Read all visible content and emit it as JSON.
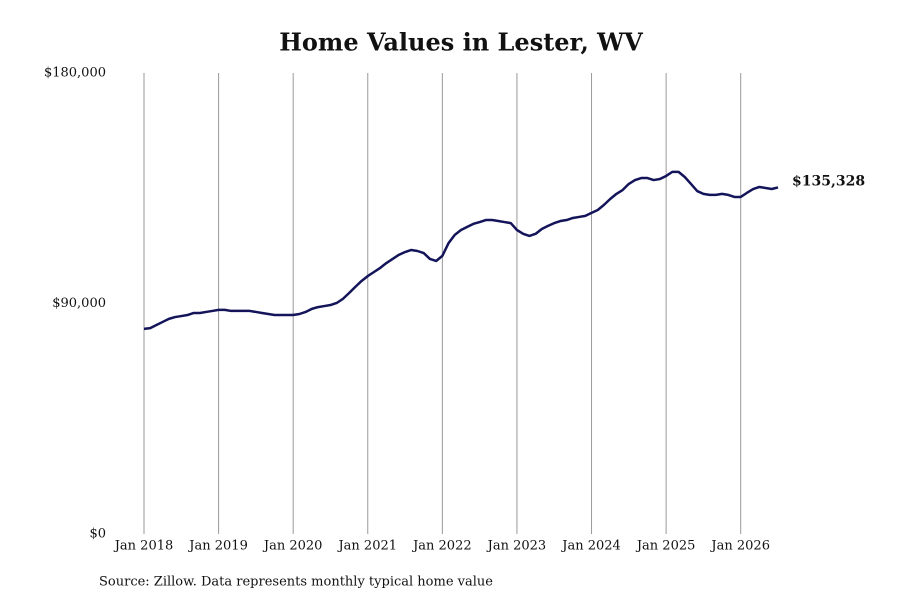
{
  "chart_data": {
    "type": "line",
    "title": "Home Values in Lester, WV",
    "source": "Source: Zillow. Data represents monthly typical home value",
    "end_label": "$135,328",
    "x": [
      "2018-01",
      "2018-02",
      "2018-03",
      "2018-04",
      "2018-05",
      "2018-06",
      "2018-07",
      "2018-08",
      "2018-09",
      "2018-10",
      "2018-11",
      "2018-12",
      "2019-01",
      "2019-02",
      "2019-03",
      "2019-04",
      "2019-05",
      "2019-06",
      "2019-07",
      "2019-08",
      "2019-09",
      "2019-10",
      "2019-11",
      "2019-12",
      "2020-01",
      "2020-02",
      "2020-03",
      "2020-04",
      "2020-05",
      "2020-06",
      "2020-07",
      "2020-08",
      "2020-09",
      "2020-10",
      "2020-11",
      "2020-12",
      "2021-01",
      "2021-02",
      "2021-03",
      "2021-04",
      "2021-05",
      "2021-06",
      "2021-07",
      "2021-08",
      "2021-09",
      "2021-10",
      "2021-11",
      "2021-12",
      "2022-01",
      "2022-02",
      "2022-03",
      "2022-04",
      "2022-05",
      "2022-06",
      "2022-07",
      "2022-08",
      "2022-09",
      "2022-10",
      "2022-11",
      "2022-12",
      "2023-01",
      "2023-02",
      "2023-03",
      "2023-04",
      "2023-05",
      "2023-06",
      "2023-07",
      "2023-08",
      "2023-09",
      "2023-10",
      "2023-11",
      "2023-12",
      "2024-01",
      "2024-02",
      "2024-03",
      "2024-04",
      "2024-05",
      "2024-06",
      "2024-07",
      "2024-08",
      "2024-09",
      "2024-10",
      "2024-11",
      "2024-12",
      "2025-01",
      "2025-02",
      "2025-03",
      "2025-04",
      "2025-05",
      "2025-06",
      "2025-07",
      "2025-08",
      "2025-09",
      "2025-10",
      "2025-11",
      "2025-12",
      "2026-01",
      "2026-02",
      "2026-03",
      "2026-04",
      "2026-05",
      "2026-06",
      "2026-07"
    ],
    "series": [
      {
        "color": "#14145a",
        "values": [
          80100,
          80400,
          81600,
          82800,
          84000,
          84700,
          85100,
          85500,
          86300,
          86300,
          86700,
          87100,
          87500,
          87500,
          87100,
          87100,
          87100,
          87100,
          86700,
          86300,
          85900,
          85500,
          85500,
          85500,
          85500,
          85900,
          86700,
          87900,
          88600,
          89000,
          89400,
          90200,
          91800,
          94100,
          96500,
          98800,
          100700,
          102300,
          103900,
          105800,
          107400,
          109000,
          110100,
          110900,
          110500,
          109700,
          107400,
          106600,
          108600,
          113600,
          116800,
          118700,
          119900,
          121100,
          121800,
          122600,
          122600,
          122200,
          121800,
          121400,
          118700,
          117200,
          116400,
          117200,
          119100,
          120300,
          121400,
          122200,
          122600,
          123400,
          123800,
          124200,
          125400,
          126500,
          128500,
          130800,
          132800,
          134300,
          136700,
          138200,
          139000,
          139000,
          138200,
          138600,
          139800,
          141400,
          141400,
          139400,
          136700,
          133900,
          132800,
          132400,
          132400,
          132800,
          132400,
          131600,
          131600,
          133200,
          134700,
          135500,
          135100,
          134700,
          135328
        ]
      }
    ],
    "xlim": [
      "2018-01",
      "2026-07"
    ],
    "xticks": [
      {
        "value": "2018-01",
        "label": "Jan 2018"
      },
      {
        "value": "2019-01",
        "label": "Jan 2019"
      },
      {
        "value": "2020-01",
        "label": "Jan 2020"
      },
      {
        "value": "2021-01",
        "label": "Jan 2021"
      },
      {
        "value": "2022-01",
        "label": "Jan 2022"
      },
      {
        "value": "2023-01",
        "label": "Jan 2023"
      },
      {
        "value": "2024-01",
        "label": "Jan 2024"
      },
      {
        "value": "2025-01",
        "label": "Jan 2025"
      },
      {
        "value": "2026-01",
        "label": "Jan 2026"
      }
    ],
    "ylim": [
      0,
      180000
    ],
    "yticks": [
      {
        "value": 0,
        "label": "$0"
      },
      {
        "value": 90000,
        "label": "$90,000"
      },
      {
        "value": 180000,
        "label": "$180,000"
      }
    ],
    "grid": true
  }
}
